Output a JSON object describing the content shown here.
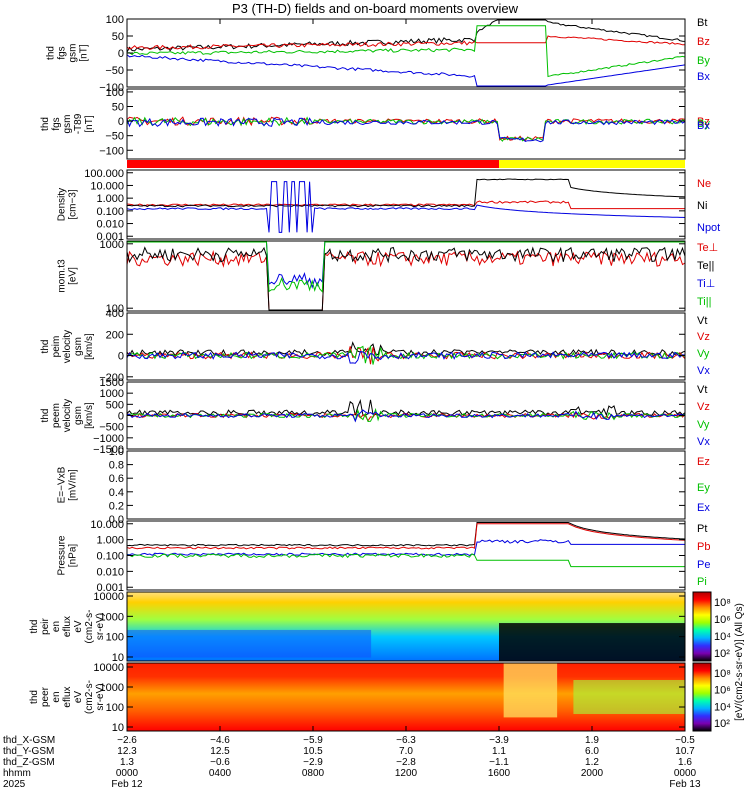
{
  "title": "P3 (TH-D) fields and on-board moments overview",
  "chart_data": [
    {
      "id": "fgs_gsm",
      "type": "line",
      "ylabel": [
        "thd",
        "fgs",
        "gsm",
        "[nT]"
      ],
      "ylim": [
        -100,
        100
      ],
      "yticks": [
        "100",
        "50",
        "0",
        "−50",
        "−100"
      ],
      "ytick_values": [
        100,
        50,
        0,
        -50,
        -100
      ],
      "series": [
        {
          "name": "Bt",
          "color": "#000000"
        },
        {
          "name": "Bz",
          "color": "#e00000"
        },
        {
          "name": "By",
          "color": "#00c000"
        },
        {
          "name": "Bx",
          "color": "#0000e0"
        }
      ]
    },
    {
      "id": "fgs_gsm_t89",
      "type": "line",
      "ylabel": [
        "thd",
        "fgs",
        "gsm",
        "-T89",
        "[nT]"
      ],
      "ylim": [
        -130,
        110
      ],
      "yticks": [
        "100",
        "50",
        "0",
        "−50",
        "−100"
      ],
      "ytick_values": [
        100,
        50,
        0,
        -50,
        -100
      ],
      "series": [
        {
          "name": "Bz",
          "color": "#e00000"
        },
        {
          "name": "By",
          "color": "#00c000"
        },
        {
          "name": "Bx",
          "color": "#0000e0"
        }
      ]
    },
    {
      "id": "mode_bar",
      "type": "bar",
      "colors": [
        "#ff0000",
        "#ffff00"
      ],
      "boundary_time": "1600"
    },
    {
      "id": "density",
      "type": "line",
      "ylabel": [
        "Density",
        "[cm−3]"
      ],
      "log": true,
      "yticks": [
        "100.000",
        "10.000",
        "1.000",
        "0.100",
        "0.010",
        "0.001"
      ],
      "ytick_values": [
        100,
        10,
        1,
        0.1,
        0.01,
        0.001
      ],
      "series": [
        {
          "name": "Ne",
          "color": "#e00000"
        },
        {
          "name": "Ni",
          "color": "#000000"
        },
        {
          "name": "Npot",
          "color": "#0000e0"
        }
      ]
    },
    {
      "id": "temperature",
      "type": "line",
      "ylabel": [
        "mom.t3",
        "[eV]"
      ],
      "log": true,
      "yticks": [
        "1000",
        "100"
      ],
      "ytick_values": [
        1000,
        100
      ],
      "series": [
        {
          "name": "Te⊥",
          "color": "#e00000"
        },
        {
          "name": "Te||",
          "color": "#000000"
        },
        {
          "name": "Ti⊥",
          "color": "#0000e0"
        },
        {
          "name": "Ti||",
          "color": "#00c000"
        }
      ]
    },
    {
      "id": "peim_velocity",
      "type": "line",
      "ylabel": [
        "thd",
        "peim",
        "velocity",
        "gsm",
        "[km/s]"
      ],
      "ylim": [
        -230,
        400
      ],
      "yticks": [
        "400",
        "200",
        "0",
        "−200"
      ],
      "ytick_values": [
        400,
        200,
        0,
        -200
      ],
      "series": [
        {
          "name": "Vt",
          "color": "#000000"
        },
        {
          "name": "Vz",
          "color": "#e00000"
        },
        {
          "name": "Vy",
          "color": "#00c000"
        },
        {
          "name": "Vx",
          "color": "#0000e0"
        }
      ]
    },
    {
      "id": "peem_velocity",
      "type": "line",
      "ylabel": [
        "thd",
        "peem",
        "velocity",
        "gsm",
        "[km/s]"
      ],
      "ylim": [
        -1500,
        1500
      ],
      "yticks": [
        "1500",
        "1000",
        "500",
        "0",
        "−500",
        "−1000",
        "−1500"
      ],
      "ytick_values": [
        1500,
        1000,
        500,
        0,
        -500,
        -1000,
        -1500
      ],
      "series": [
        {
          "name": "Vt",
          "color": "#000000"
        },
        {
          "name": "Vz",
          "color": "#e00000"
        },
        {
          "name": "Vy",
          "color": "#00c000"
        },
        {
          "name": "Vx",
          "color": "#0000e0"
        }
      ]
    },
    {
      "id": "efield",
      "type": "line",
      "ylabel": [
        "E=−VxB",
        "[mV/m]"
      ],
      "ylim": [
        0,
        1
      ],
      "yticks": [
        "1.0",
        "0.8",
        "0.6",
        "0.4",
        "0.2",
        "0.0"
      ],
      "ytick_values": [
        1,
        0.8,
        0.6,
        0.4,
        0.2,
        0
      ],
      "series": [
        {
          "name": "Ez",
          "color": "#e00000"
        },
        {
          "name": "Ey",
          "color": "#00c000"
        },
        {
          "name": "Ex",
          "color": "#0000e0"
        }
      ]
    },
    {
      "id": "pressure",
      "type": "line",
      "ylabel": [
        "Pressure",
        "[nPa]"
      ],
      "log": true,
      "yticks": [
        "10.000",
        "1.000",
        "0.100",
        "0.010",
        "0.001"
      ],
      "ytick_values": [
        10,
        1,
        0.1,
        0.01,
        0.001
      ],
      "series": [
        {
          "name": "Pt",
          "color": "#000000"
        },
        {
          "name": "Pb",
          "color": "#e00000"
        },
        {
          "name": "Pe",
          "color": "#0000e0"
        },
        {
          "name": "Pi",
          "color": "#00c000"
        }
      ]
    },
    {
      "id": "peir_eflux",
      "type": "heatmap",
      "ylabel": [
        "thd",
        "peir",
        "en",
        "eflux",
        "eV",
        "(cm2-s-",
        "sr-eV)"
      ],
      "log": true,
      "yticks": [
        "10000",
        "1000",
        "100",
        "10"
      ],
      "ytick_values": [
        10000,
        1000,
        100,
        10
      ]
    },
    {
      "id": "peer_eflux",
      "type": "heatmap",
      "ylabel": [
        "thd",
        "peer",
        "en",
        "eflux",
        "eV",
        "(cm2-s-",
        "sr-eV)"
      ],
      "log": true,
      "yticks": [
        "10000",
        "1000",
        "100",
        "10"
      ],
      "ytick_values": [
        10000,
        1000,
        100,
        10
      ]
    }
  ],
  "colorbar": {
    "label": "[eV/(cm2-s-sr-eV)] (All Qs)",
    "panel1_ticks": [
      "10⁸",
      "10⁶",
      "10⁴",
      "10²"
    ],
    "panel2_ticks": [
      "10⁸",
      "10⁶",
      "10⁴",
      "10²"
    ],
    "colors": [
      "#000000",
      "#7a00b0",
      "#3030ff",
      "#00b4ff",
      "#00ffb0",
      "#a0ff00",
      "#ffff00",
      "#ff9000",
      "#ff0000",
      "#b00000"
    ]
  },
  "time_axis": {
    "hhmm": [
      "0000",
      "0400",
      "0800",
      "1200",
      "1600",
      "2000",
      "0000"
    ],
    "hours": [
      0,
      4,
      8,
      12,
      16,
      20,
      24
    ],
    "dates": {
      "0": "Feb 12",
      "24": "Feb 13"
    },
    "year": "2025"
  },
  "ephemeris": {
    "labels": [
      "thd_X-GSM",
      "thd_Y-GSM",
      "thd_Z-GSM",
      "hhmm"
    ],
    "x_gsm": [
      "−2.6",
      "−4.6",
      "−5.9",
      "−6.3",
      "−3.9",
      "1.9",
      "−0.5"
    ],
    "y_gsm": [
      "12.3",
      "12.5",
      "10.5",
      "7.0",
      "1.1",
      "6.0",
      "10.7"
    ],
    "z_gsm": [
      "1.3",
      "−0.6",
      "−2.9",
      "−2.8",
      "−1.1",
      "1.2",
      "1.6"
    ]
  }
}
